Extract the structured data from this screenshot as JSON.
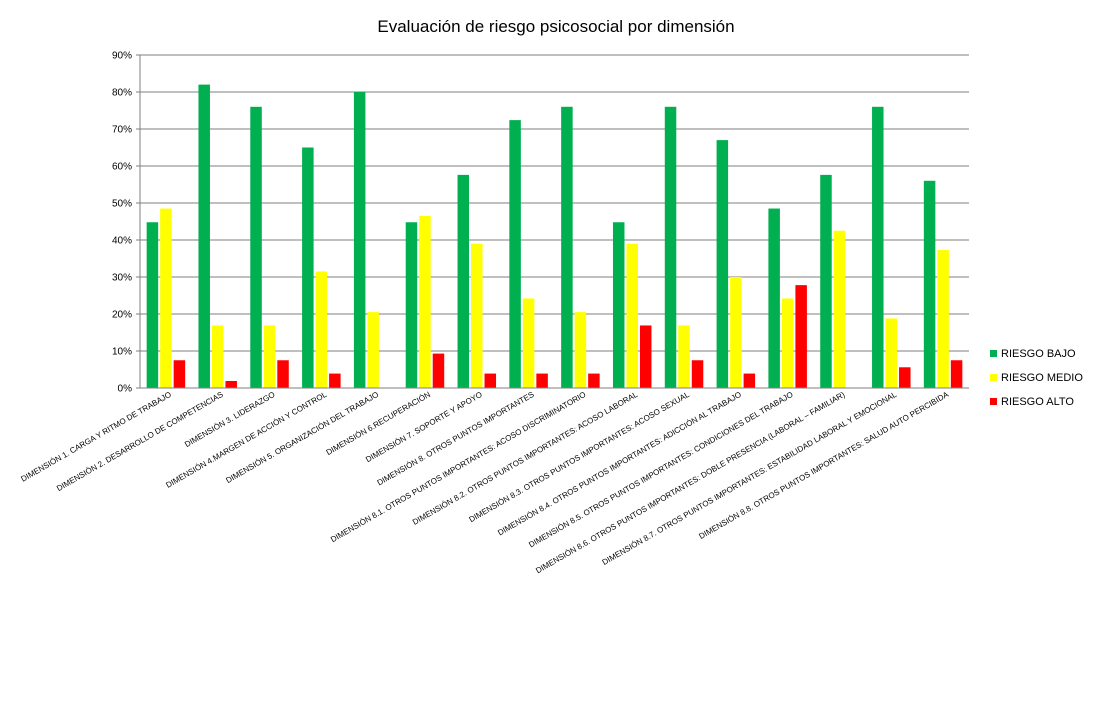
{
  "chart_data": {
    "type": "bar",
    "title": "Evaluación de riesgo psicosocial por dimensión",
    "xlabel": "",
    "ylabel": "",
    "ylim": [
      0,
      90
    ],
    "yticks": [
      "0%",
      "10%",
      "20%",
      "30%",
      "40%",
      "50%",
      "60%",
      "70%",
      "80%",
      "90%"
    ],
    "grid": true,
    "legend_position": "right",
    "categories": [
      "DIMENSIÓN 1. CARGA Y RITMO DE TRABAJO",
      "DIMENSIÓN 2. DESARROLLO DE COMPETENCIAS",
      "DIMENSIÓN 3. LIDERAZGO",
      "DIMENSIÓN 4.MARGEN DE ACCIÓN Y CONTROL",
      "DIMENSIÓN 5. ORGANIZACIÓN DEL TRABAJO",
      "DIMENSIÓN 6.RECUPERACIÓN",
      "DIMENSIÓN 7. SOPORTE Y APOYO",
      "DIMENSIÓN 8. OTROS PUNTOS IMPORTANTES",
      "DIMENSIÓN 8.1. OTROS PUNTOS IMPORTANTES: ACOSO DISCRIMINATORIO",
      "DIMENSIÓN 8.2. OTROS PUNTOS IMPORTANTES: ACOSO LABORAL",
      "DIMENSIÓN 8.3. OTROS PUNTOS IMPORTANTES: ACOSO SEXUAL",
      "DIMENSIÓN 8.4. OTROS PUNTOS IMPORTANTES: ADICCIÓN AL TRABAJO",
      "DIMENSIÓN 8.5. OTROS PUNTOS IMPORTANTES: CONDICIONES DEL TRABAJO",
      "DIMENSIÓN 8.6. OTROS PUNTOS IMPORTANTES: DOBLE PRESENCIA (LABORAL – FAMILIAR)",
      "DIMENSIÓN 8.7. OTROS PUNTOS IMPORTANTES: ESTABILIDAD LABORAL Y EMOCIONAL",
      "DIMENSIÓN 8.8. OTROS PUNTOS IMPORTANTES: SALUD AUTO PERCIBIDA"
    ],
    "series": [
      {
        "name": "RIESGO BAJO",
        "color": "#00B050",
        "values": [
          44.8,
          82,
          76,
          65,
          80,
          44.8,
          57.6,
          72.4,
          76,
          44.8,
          76,
          67,
          48.5,
          57.6,
          76,
          56
        ]
      },
      {
        "name": "RIESGO MEDIO",
        "color": "#FFFF00",
        "values": [
          48.5,
          16.9,
          16.9,
          31.5,
          20.5,
          46.5,
          39,
          24.2,
          20.5,
          39,
          16.9,
          30,
          24.2,
          42.5,
          18.8,
          37.3
        ]
      },
      {
        "name": "RIESGO ALTO",
        "color": "#FF0000",
        "values": [
          7.5,
          1.9,
          7.5,
          3.9,
          0,
          9.3,
          3.9,
          3.9,
          3.9,
          16.9,
          7.5,
          3.9,
          27.8,
          0,
          5.6,
          7.5
        ]
      }
    ]
  }
}
